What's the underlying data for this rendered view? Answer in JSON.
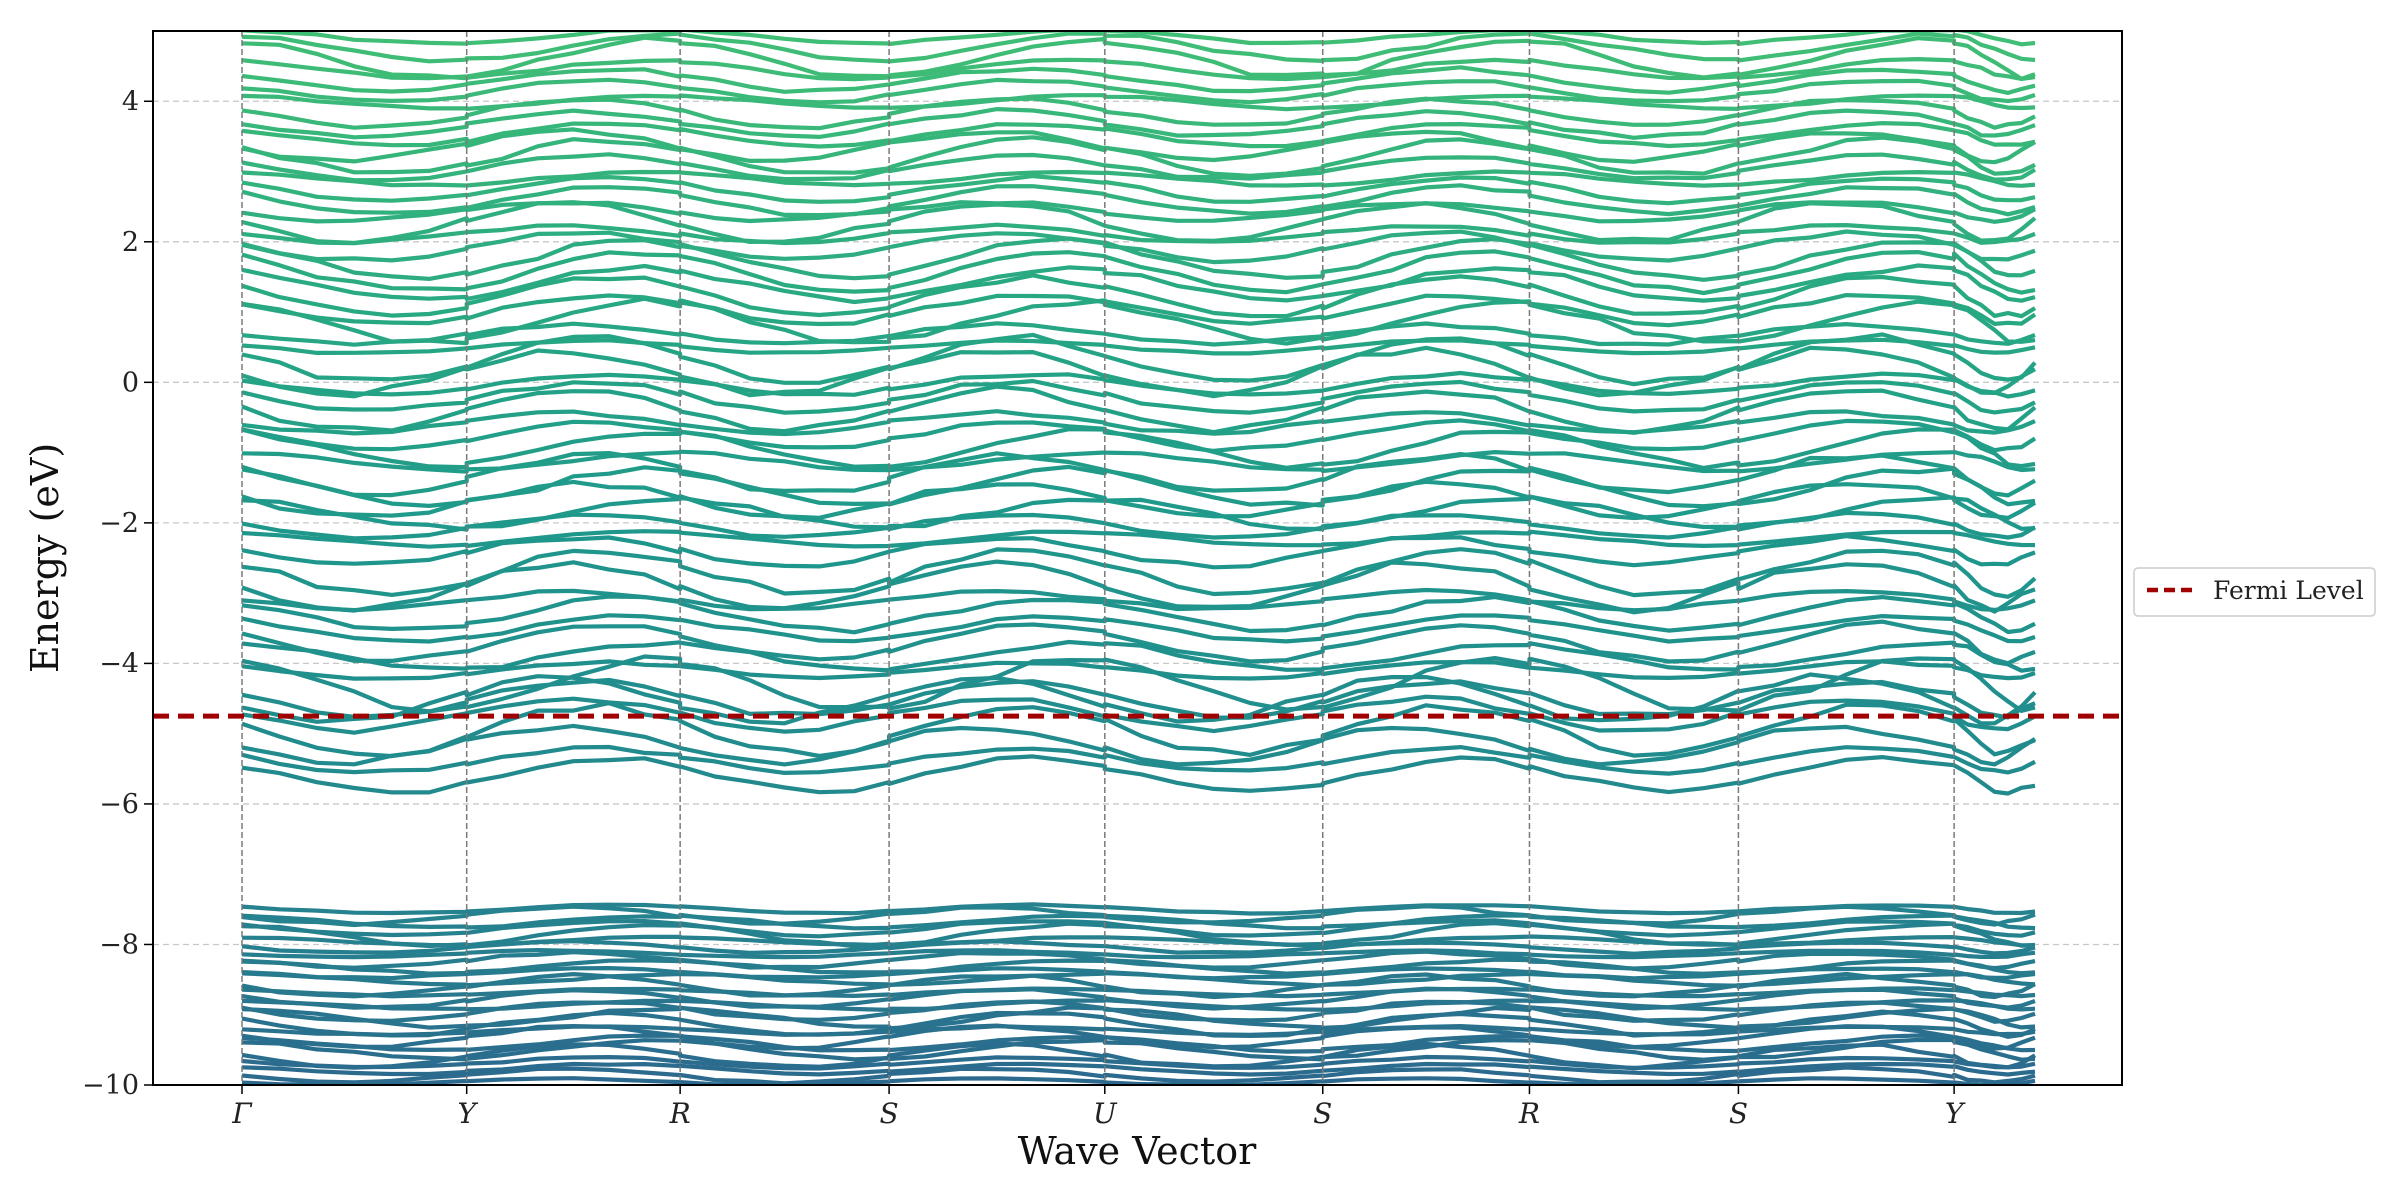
{
  "chart_data": {
    "type": "line",
    "title": "",
    "xlabel": "Wave Vector",
    "ylabel": "Energy (eV)",
    "ylim": [
      -10,
      5
    ],
    "yticks": [
      -10,
      -8,
      -6,
      -4,
      -2,
      0,
      2,
      4
    ],
    "ytick_labels": [
      "−10",
      "−8",
      "−6",
      "−4",
      "−2",
      "0",
      "2",
      "4"
    ],
    "grid": true,
    "legend_position": "right, outside plot",
    "colormap": "viridis",
    "kpoints": [
      {
        "label": "Γ",
        "x": 0.0
      },
      {
        "label": "Y",
        "x": 1.0
      },
      {
        "label": "R",
        "x": 1.95
      },
      {
        "label": "S",
        "x": 2.88
      },
      {
        "label": "U",
        "x": 3.84
      },
      {
        "label": "S",
        "x": 4.81
      },
      {
        "label": "R",
        "x": 5.73
      },
      {
        "label": "S",
        "x": 6.66
      },
      {
        "label": "Y",
        "x": 7.62
      }
    ],
    "x_end": 7.98,
    "series": [
      {
        "name": "Fermi Level",
        "style": "dashed",
        "color": "#a00000",
        "value": -4.75
      }
    ],
    "band_groups": [
      {
        "name": "",
        "emin": -10.0,
        "emax": -7.45,
        "count": 28
      },
      {
        "name": "",
        "emin": -5.7,
        "emax": -4.4,
        "count": 6
      },
      {
        "name": "",
        "emin": -4.6,
        "emax": -2.6,
        "count": 10
      },
      {
        "name": "",
        "emin": -2.5,
        "emax": -0.3,
        "count": 12
      },
      {
        "name": "",
        "emin": -0.3,
        "emax": 2.2,
        "count": 14
      },
      {
        "name": "",
        "emin": 2.2,
        "emax": 5.0,
        "count": 18
      }
    ]
  }
}
